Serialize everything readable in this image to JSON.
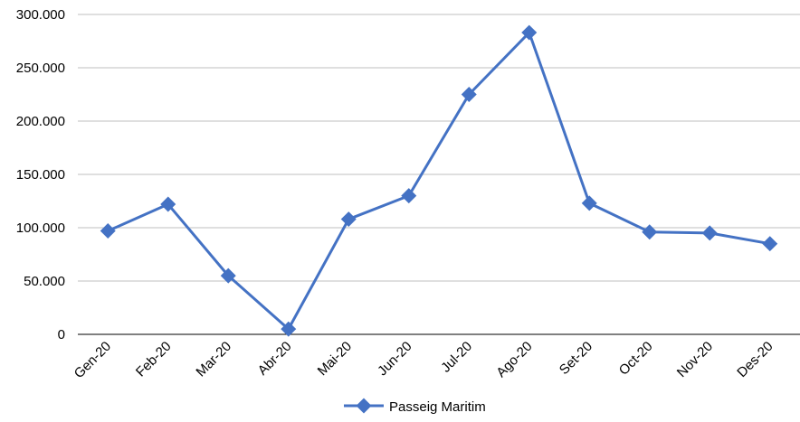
{
  "chart_data": {
    "type": "line",
    "categories": [
      "Gen-20",
      "Feb-20",
      "Mar-20",
      "Abr-20",
      "Mai-20",
      "Jun-20",
      "Jul-20",
      "Ago-20",
      "Set-20",
      "Oct-20",
      "Nov-20",
      "Des-20"
    ],
    "series": [
      {
        "name": "Passeig Maritim",
        "values": [
          97000,
          122000,
          55000,
          5000,
          108000,
          130000,
          225000,
          283000,
          123000,
          96000,
          95000,
          85000
        ]
      }
    ],
    "yticks": [
      "0",
      "50.000",
      "100.000",
      "150.000",
      "200.000",
      "250.000",
      "300.000"
    ],
    "ylim": [
      0,
      300000
    ],
    "grid": "horizontal",
    "legend": "bottom",
    "color": "#4472C4"
  }
}
